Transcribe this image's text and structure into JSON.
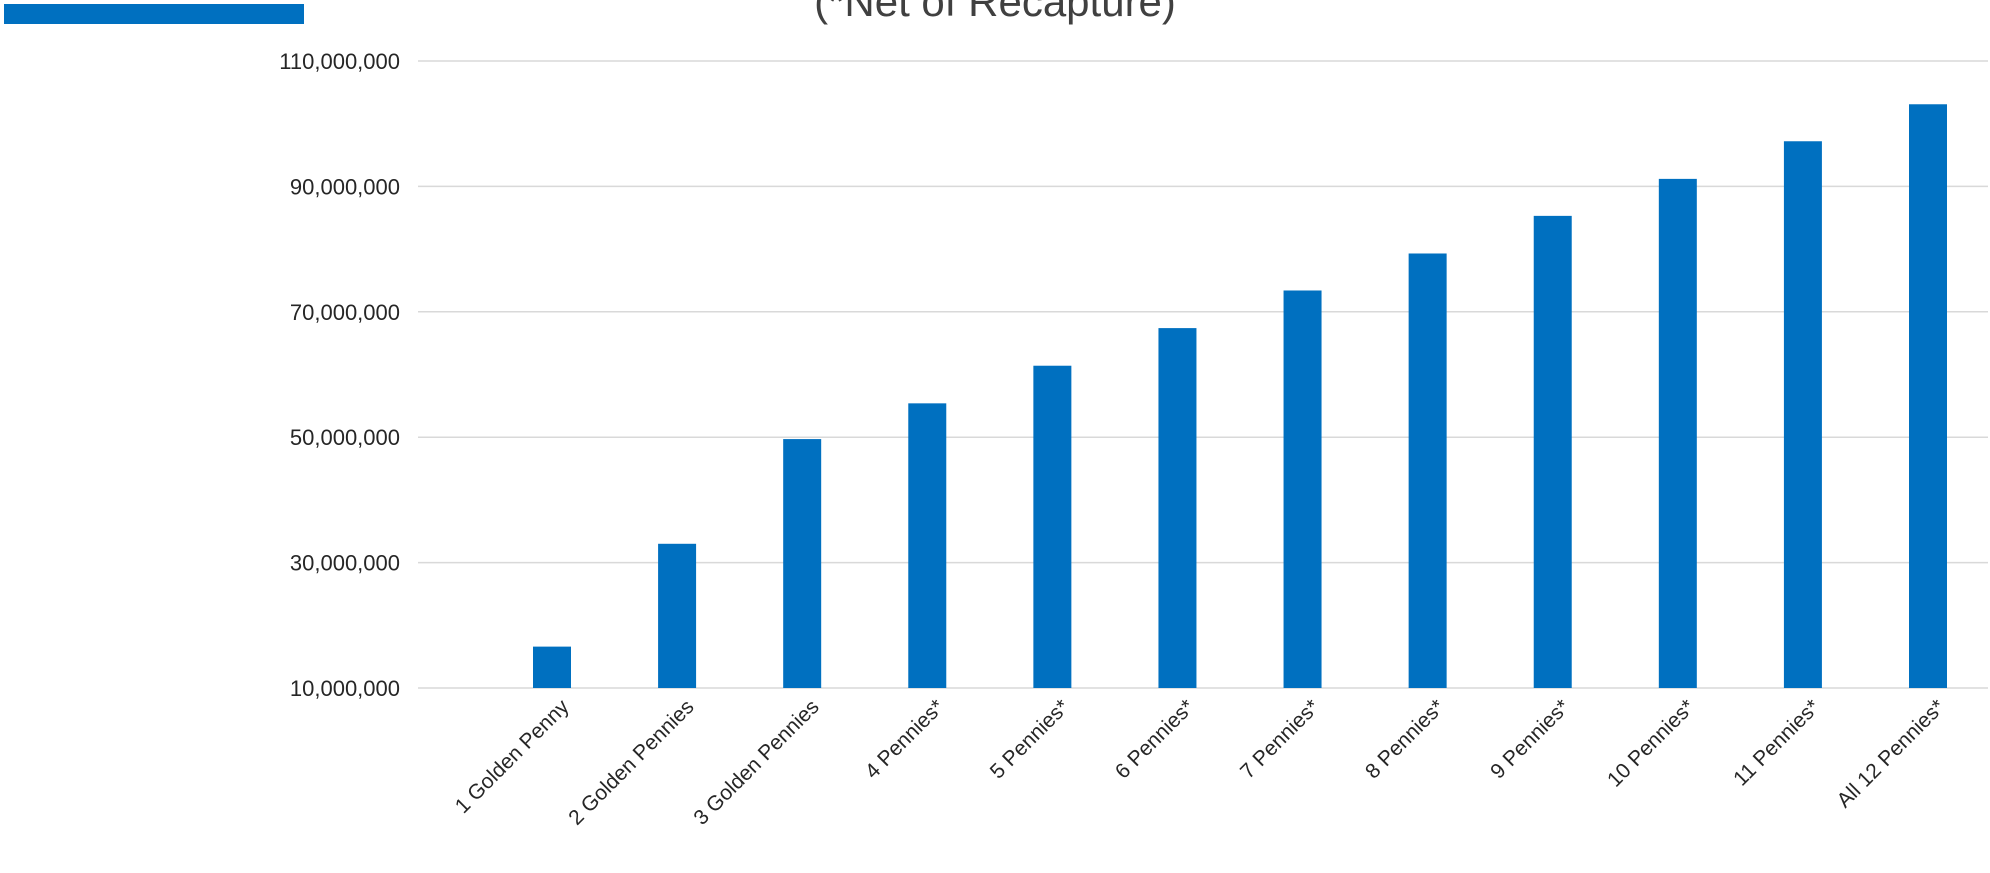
{
  "title": "(*Net of Recapture)",
  "colors": {
    "bar": "#0070C0",
    "gridline": "#D9D9D9",
    "tick_text": "#262626",
    "title_text": "#404040"
  },
  "chart_data": {
    "type": "bar",
    "title": "(*Net of Recapture)",
    "xlabel": "",
    "ylabel": "",
    "legend": "top-left",
    "grid": true,
    "ylim": [
      10000000,
      110000000
    ],
    "yticks": [
      10000000,
      30000000,
      50000000,
      70000000,
      90000000,
      110000000
    ],
    "ytick_labels": [
      "10,000,000",
      "30,000,000",
      "50,000,000",
      "70,000,000",
      "90,000,000",
      "110,000,000"
    ],
    "categories": [
      "1 Golden Penny",
      "2 Golden Pennies",
      "3 Golden Pennies",
      "4 Pennies*",
      "5 Pennies*",
      "6 Pennies*",
      "7 Pennies*",
      "8 Pennies*",
      "9 Pennies*",
      "10 Pennies*",
      "11 Pennies*",
      "All 12 Pennies*"
    ],
    "values": [
      16600000,
      33000000,
      49700000,
      55400000,
      61400000,
      67400000,
      73400000,
      79300000,
      85300000,
      91200000,
      97200000,
      103100000
    ]
  }
}
